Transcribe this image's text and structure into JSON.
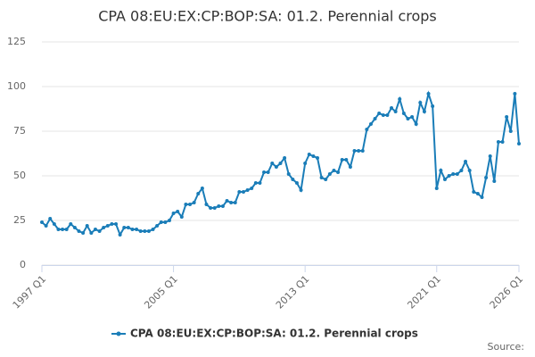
{
  "chart_data": {
    "type": "line",
    "title": "CPA 08:EU:EX:CP:BOP:SA: 01.2. Perennial crops",
    "categories": [
      "1997 Q1",
      null,
      null,
      null,
      null,
      null,
      null,
      null,
      null,
      null,
      null,
      null,
      null,
      null,
      null,
      null,
      null,
      null,
      null,
      null,
      null,
      null,
      null,
      null,
      null,
      null,
      null,
      null,
      null,
      null,
      null,
      null,
      "2005 Q1",
      null,
      null,
      null,
      null,
      null,
      null,
      null,
      null,
      null,
      null,
      null,
      null,
      null,
      null,
      null,
      null,
      null,
      null,
      null,
      null,
      null,
      null,
      null,
      null,
      null,
      null,
      null,
      null,
      null,
      null,
      null,
      "2013 Q1",
      null,
      null,
      null,
      null,
      null,
      null,
      null,
      null,
      null,
      null,
      null,
      null,
      null,
      null,
      null,
      null,
      null,
      null,
      null,
      null,
      null,
      null,
      null,
      null,
      null,
      null,
      null,
      null,
      null,
      null,
      null,
      "2021 Q1",
      null,
      null,
      null,
      null,
      null,
      null,
      null,
      null,
      null,
      null,
      null,
      null,
      null,
      null,
      null,
      null,
      null,
      null,
      null,
      "2026 Q1"
    ],
    "series": [
      {
        "name": "CPA 08:EU:EX:CP:BOP:SA: 01.2. Perennial crops",
        "color": "#1a7db8",
        "values": [
          24,
          22,
          26,
          23,
          20,
          20,
          20,
          23,
          21,
          19,
          18,
          22,
          18,
          20,
          19,
          21,
          22,
          23,
          23,
          17,
          21,
          21,
          20,
          20,
          19,
          19,
          19,
          20,
          22,
          24,
          24,
          25,
          29,
          30,
          27,
          34,
          34,
          35,
          40,
          43,
          34,
          32,
          32,
          33,
          33,
          36,
          35,
          35,
          41,
          41,
          42,
          43,
          46,
          46,
          52,
          52,
          57,
          55,
          57,
          60,
          51,
          48,
          46,
          42,
          57,
          62,
          61,
          60,
          49,
          48,
          51,
          53,
          52,
          59,
          59,
          55,
          64,
          64,
          64,
          76,
          79,
          82,
          85,
          84,
          84,
          88,
          86,
          93,
          85,
          82,
          83,
          79,
          91,
          86,
          96,
          89,
          43,
          53,
          48,
          50,
          51,
          51,
          53,
          58,
          53,
          41,
          40,
          38,
          49,
          61,
          47,
          69,
          69,
          83,
          75,
          96,
          68
        ]
      }
    ],
    "ylim": [
      0,
      125
    ],
    "yticks": [
      0,
      25,
      50,
      75,
      100,
      125
    ],
    "grid": true,
    "legend": "bottom",
    "source": "Source:"
  }
}
